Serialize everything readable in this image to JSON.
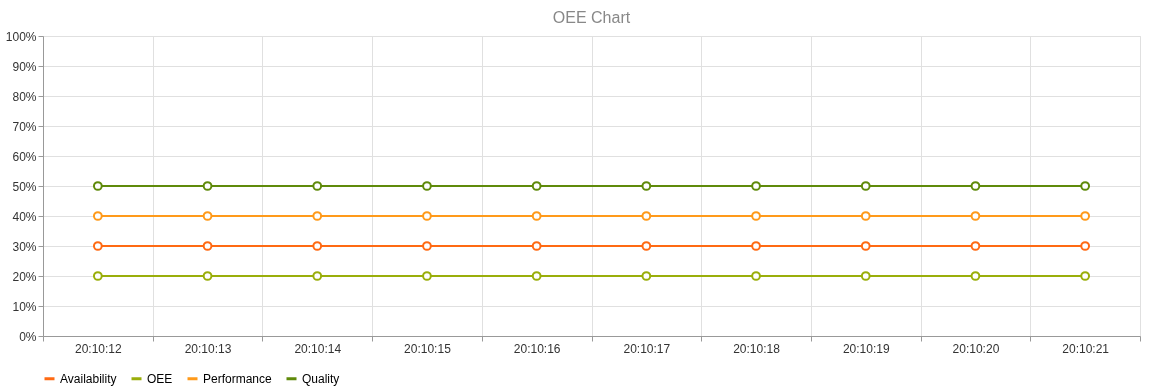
{
  "chart_data": {
    "type": "line",
    "title": "OEE Chart",
    "categories": [
      "20:10:12",
      "20:10:13",
      "20:10:14",
      "20:10:15",
      "20:10:16",
      "20:10:17",
      "20:10:18",
      "20:10:19",
      "20:10:20",
      "20:10:21"
    ],
    "series": [
      {
        "name": "Availability",
        "color": "#ff6a13",
        "values": [
          30,
          30,
          30,
          30,
          30,
          30,
          30,
          30,
          30,
          30
        ]
      },
      {
        "name": "OEE",
        "color": "#9aae0a",
        "values": [
          20,
          20,
          20,
          20,
          20,
          20,
          20,
          20,
          20,
          20
        ]
      },
      {
        "name": "Performance",
        "color": "#ff9a1a",
        "values": [
          40,
          40,
          40,
          40,
          40,
          40,
          40,
          40,
          40,
          40
        ]
      },
      {
        "name": "Quality",
        "color": "#5f8a0a",
        "values": [
          50,
          50,
          50,
          50,
          50,
          50,
          50,
          50,
          50,
          50
        ]
      }
    ],
    "ylim": [
      0,
      100
    ],
    "yticks": [
      {
        "value": 0,
        "label": "0%"
      },
      {
        "value": 10,
        "label": "10%"
      },
      {
        "value": 20,
        "label": "20%"
      },
      {
        "value": 30,
        "label": "30%"
      },
      {
        "value": 40,
        "label": "40%"
      },
      {
        "value": 50,
        "label": "50%"
      },
      {
        "value": 60,
        "label": "60%"
      },
      {
        "value": 70,
        "label": "70%"
      },
      {
        "value": 80,
        "label": "80%"
      },
      {
        "value": 90,
        "label": "90%"
      },
      {
        "value": 100,
        "label": "100%"
      }
    ],
    "grid": true,
    "legend": "bottom",
    "marker": "circle",
    "line_style": "solid"
  }
}
